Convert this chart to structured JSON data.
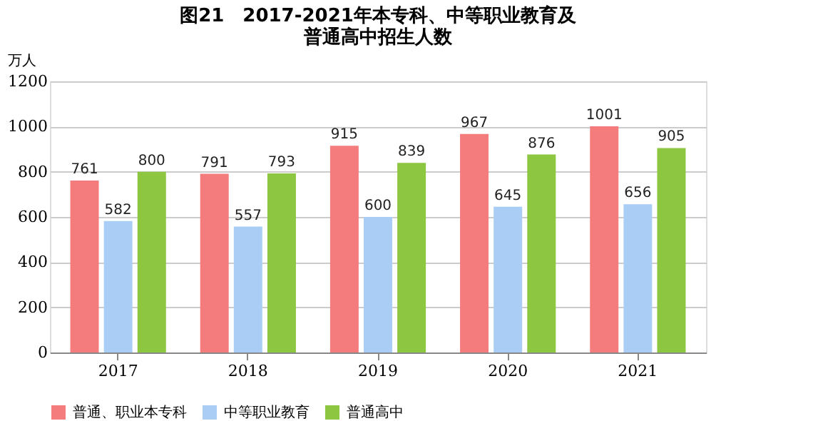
{
  "chart_data": {
    "type": "bar",
    "title": "图21　2017-2021年本专科、中等职业教育及普通高中招生人数",
    "ylabel": "万人",
    "categories": [
      "2017",
      "2018",
      "2019",
      "2020",
      "2021"
    ],
    "series": [
      {
        "name": "普通、职业本专科",
        "color": "#f47c7c",
        "values": [
          761,
          791,
          915,
          967,
          1001
        ]
      },
      {
        "name": "中等职业教育",
        "color": "#a9cdf4",
        "values": [
          582,
          557,
          600,
          645,
          656
        ]
      },
      {
        "name": "普通高中",
        "color": "#8dc641",
        "values": [
          800,
          793,
          839,
          876,
          905
        ]
      }
    ],
    "ylim": [
      0,
      1200
    ],
    "yticks": [
      0,
      200,
      400,
      600,
      800,
      1000,
      1200
    ],
    "grid": "y",
    "legend": "bottom",
    "data_labels": true
  }
}
